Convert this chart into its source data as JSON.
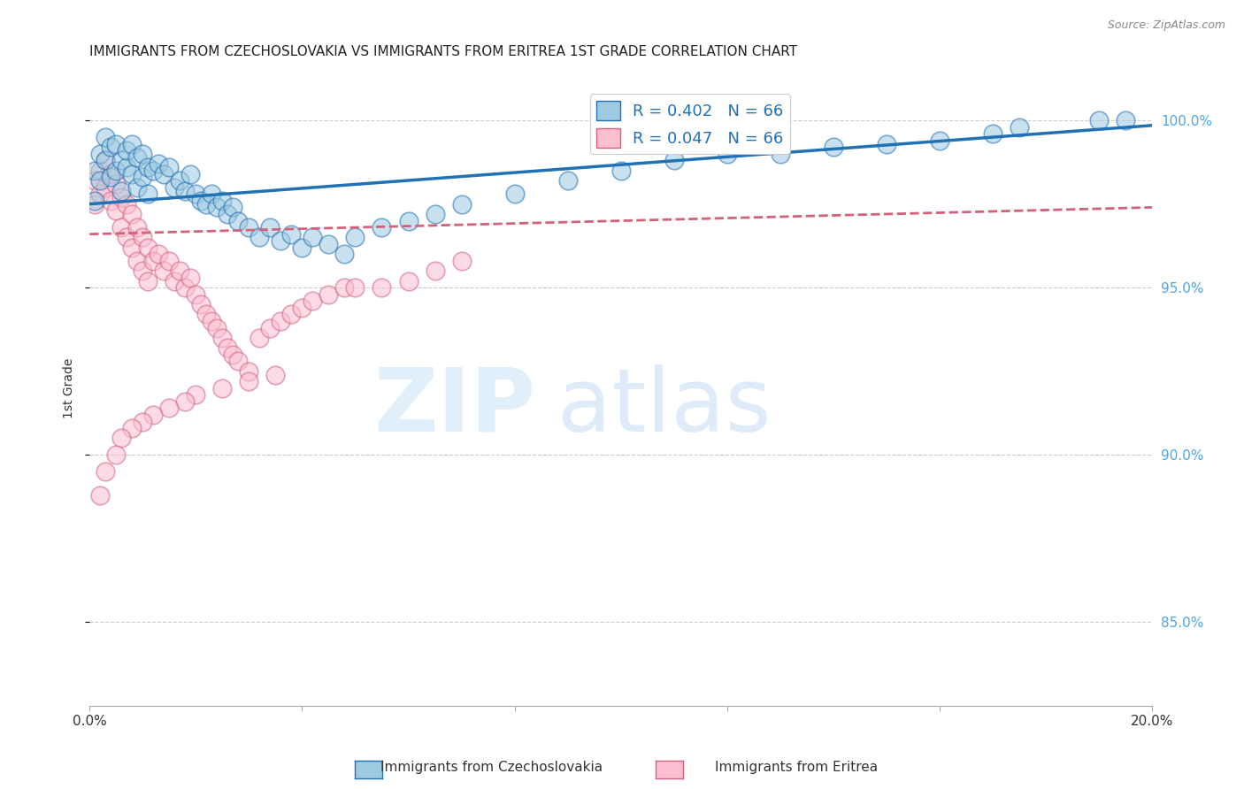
{
  "title": "IMMIGRANTS FROM CZECHOSLOVAKIA VS IMMIGRANTS FROM ERITREA 1ST GRADE CORRELATION CHART",
  "source": "Source: ZipAtlas.com",
  "ylabel": "1st Grade",
  "xlim": [
    0.0,
    0.2
  ],
  "ylim": [
    0.825,
    1.015
  ],
  "xtick_vals": [
    0.0,
    0.04,
    0.08,
    0.12,
    0.16,
    0.2
  ],
  "xtick_labels": [
    "0.0%",
    "",
    "",
    "",
    "",
    "20.0%"
  ],
  "ytick_vals": [
    0.85,
    0.9,
    0.95,
    1.0
  ],
  "ytick_labels": [
    "85.0%",
    "90.0%",
    "95.0%",
    "100.0%"
  ],
  "blue_face": "#9ecae1",
  "blue_edge": "#2171b5",
  "pink_face": "#fcbfd2",
  "pink_edge": "#d4607a",
  "blue_line_color": "#2171b5",
  "pink_line_color": "#d4607a",
  "legend_label1": "Immigrants from Czechoslovakia",
  "legend_label2": "Immigrants from Eritrea",
  "legend_text1": "R = 0.402   N = 66",
  "legend_text2": "R = 0.047   N = 66",
  "blue_x": [
    0.001,
    0.001,
    0.002,
    0.002,
    0.003,
    0.003,
    0.004,
    0.004,
    0.005,
    0.005,
    0.006,
    0.006,
    0.007,
    0.007,
    0.008,
    0.008,
    0.009,
    0.009,
    0.01,
    0.01,
    0.011,
    0.011,
    0.012,
    0.013,
    0.014,
    0.015,
    0.016,
    0.017,
    0.018,
    0.019,
    0.02,
    0.021,
    0.022,
    0.023,
    0.024,
    0.025,
    0.026,
    0.027,
    0.028,
    0.03,
    0.032,
    0.034,
    0.036,
    0.038,
    0.04,
    0.042,
    0.045,
    0.048,
    0.05,
    0.055,
    0.06,
    0.065,
    0.07,
    0.08,
    0.09,
    0.1,
    0.11,
    0.12,
    0.13,
    0.14,
    0.15,
    0.16,
    0.17,
    0.175,
    0.19,
    0.195
  ],
  "blue_y": [
    0.976,
    0.985,
    0.982,
    0.99,
    0.988,
    0.995,
    0.983,
    0.992,
    0.985,
    0.993,
    0.979,
    0.988,
    0.986,
    0.991,
    0.984,
    0.993,
    0.98,
    0.989,
    0.983,
    0.99,
    0.978,
    0.986,
    0.985,
    0.987,
    0.984,
    0.986,
    0.98,
    0.982,
    0.979,
    0.984,
    0.978,
    0.976,
    0.975,
    0.978,
    0.974,
    0.976,
    0.972,
    0.974,
    0.97,
    0.968,
    0.965,
    0.968,
    0.964,
    0.966,
    0.962,
    0.965,
    0.963,
    0.96,
    0.965,
    0.968,
    0.97,
    0.972,
    0.975,
    0.978,
    0.982,
    0.985,
    0.988,
    0.99,
    0.99,
    0.992,
    0.993,
    0.994,
    0.996,
    0.998,
    1.0,
    1.0
  ],
  "pink_x": [
    0.001,
    0.001,
    0.002,
    0.002,
    0.003,
    0.003,
    0.004,
    0.004,
    0.005,
    0.005,
    0.006,
    0.006,
    0.007,
    0.007,
    0.008,
    0.008,
    0.009,
    0.009,
    0.01,
    0.01,
    0.011,
    0.011,
    0.012,
    0.013,
    0.014,
    0.015,
    0.016,
    0.017,
    0.018,
    0.019,
    0.02,
    0.021,
    0.022,
    0.023,
    0.024,
    0.025,
    0.026,
    0.027,
    0.028,
    0.03,
    0.032,
    0.034,
    0.036,
    0.038,
    0.04,
    0.042,
    0.045,
    0.048,
    0.05,
    0.055,
    0.06,
    0.065,
    0.07,
    0.025,
    0.03,
    0.035,
    0.02,
    0.018,
    0.015,
    0.012,
    0.01,
    0.008,
    0.006,
    0.005,
    0.003,
    0.002
  ],
  "pink_y": [
    0.975,
    0.982,
    0.978,
    0.985,
    0.98,
    0.988,
    0.976,
    0.984,
    0.973,
    0.981,
    0.968,
    0.977,
    0.965,
    0.975,
    0.962,
    0.972,
    0.958,
    0.968,
    0.955,
    0.965,
    0.952,
    0.962,
    0.958,
    0.96,
    0.955,
    0.958,
    0.952,
    0.955,
    0.95,
    0.953,
    0.948,
    0.945,
    0.942,
    0.94,
    0.938,
    0.935,
    0.932,
    0.93,
    0.928,
    0.925,
    0.935,
    0.938,
    0.94,
    0.942,
    0.944,
    0.946,
    0.948,
    0.95,
    0.95,
    0.95,
    0.952,
    0.955,
    0.958,
    0.92,
    0.922,
    0.924,
    0.918,
    0.916,
    0.914,
    0.912,
    0.91,
    0.908,
    0.905,
    0.9,
    0.895,
    0.888
  ],
  "blue_trend_x": [
    0.0,
    0.2
  ],
  "blue_trend_y": [
    0.975,
    0.9985
  ],
  "pink_trend_x": [
    0.0,
    0.2
  ],
  "pink_trend_y": [
    0.966,
    0.974
  ]
}
